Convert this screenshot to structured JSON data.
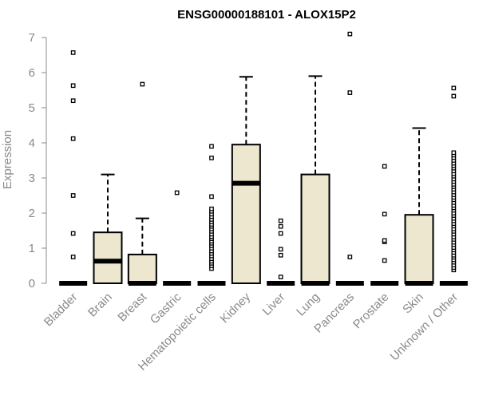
{
  "chart_data": {
    "type": "boxplot",
    "title": "ENSG00000188101 - ALOX15P2",
    "xlabel": "",
    "ylabel": "Expression",
    "ylim": [
      0,
      7
    ],
    "yticks": [
      0,
      1,
      2,
      3,
      4,
      5,
      6,
      7
    ],
    "grid": false,
    "box_fill": "#ede7cf",
    "categories": [
      "Bladder",
      "Brain",
      "Breast",
      "Gastric",
      "Hematopoietic cells",
      "Kidney",
      "Liver",
      "Lung",
      "Pancreas",
      "Prostate",
      "Skin",
      "Unknown / Other"
    ],
    "boxes": [
      {
        "category": "Bladder",
        "q1": 0,
        "median": 0,
        "q3": 0,
        "whisker_low": 0,
        "whisker_high": 0,
        "outliers": [
          0.75,
          1.42,
          2.5,
          4.12,
          5.2,
          5.63,
          6.57
        ]
      },
      {
        "category": "Brain",
        "q1": 0,
        "median": 0.63,
        "q3": 1.45,
        "whisker_low": 0,
        "whisker_high": 3.1,
        "outliers": []
      },
      {
        "category": "Breast",
        "q1": 0,
        "median": 0,
        "q3": 0.82,
        "whisker_low": 0,
        "whisker_high": 1.85,
        "outliers": [
          5.67
        ]
      },
      {
        "category": "Gastric",
        "q1": 0,
        "median": 0,
        "q3": 0,
        "whisker_low": 0,
        "whisker_high": 0,
        "outliers": [
          2.58
        ]
      },
      {
        "category": "Hematopoietic cells",
        "q1": 0,
        "median": 0,
        "q3": 0,
        "whisker_low": 0,
        "whisker_high": 0,
        "outliers": [
          0.42,
          0.5,
          0.57,
          0.63,
          0.7,
          0.78,
          0.85,
          0.92,
          1.0,
          1.07,
          1.14,
          1.2,
          1.27,
          1.33,
          1.4,
          1.48,
          1.55,
          1.62,
          1.68,
          1.75,
          1.82,
          1.9,
          1.97,
          2.05,
          2.12,
          2.47,
          3.57,
          3.9
        ]
      },
      {
        "category": "Kidney",
        "q1": 0,
        "median": 2.85,
        "q3": 3.95,
        "whisker_low": 0,
        "whisker_high": 5.88,
        "outliers": []
      },
      {
        "category": "Liver",
        "q1": 0,
        "median": 0,
        "q3": 0,
        "whisker_low": 0,
        "whisker_high": 0,
        "outliers": [
          0.18,
          0.8,
          0.97,
          1.42,
          1.62,
          1.78
        ]
      },
      {
        "category": "Lung",
        "q1": 0,
        "median": 0,
        "q3": 3.1,
        "whisker_low": 0,
        "whisker_high": 5.9,
        "outliers": []
      },
      {
        "category": "Pancreas",
        "q1": 0,
        "median": 0,
        "q3": 0,
        "whisker_low": 0,
        "whisker_high": 0,
        "outliers": [
          0.75,
          5.43,
          7.1
        ]
      },
      {
        "category": "Prostate",
        "q1": 0,
        "median": 0,
        "q3": 0,
        "whisker_low": 0,
        "whisker_high": 0,
        "outliers": [
          0.65,
          1.18,
          1.22,
          1.97,
          3.33
        ]
      },
      {
        "category": "Skin",
        "q1": 0,
        "median": 0,
        "q3": 1.95,
        "whisker_low": 0,
        "whisker_high": 4.42,
        "outliers": []
      },
      {
        "category": "Unknown / Other",
        "q1": 0,
        "median": 0,
        "q3": 0,
        "whisker_low": 0,
        "whisker_high": 0,
        "outliers": [
          0.38,
          0.45,
          0.52,
          0.6,
          0.67,
          0.74,
          0.8,
          0.88,
          0.95,
          1.02,
          1.1,
          1.17,
          1.25,
          1.32,
          1.4,
          1.48,
          1.55,
          1.63,
          1.7,
          1.78,
          1.85,
          1.93,
          2.0,
          2.08,
          2.15,
          2.22,
          2.3,
          2.38,
          2.45,
          2.52,
          2.6,
          2.68,
          2.75,
          2.82,
          2.9,
          2.97,
          3.05,
          3.12,
          3.2,
          3.28,
          3.35,
          3.42,
          3.5,
          3.58,
          3.65,
          3.72,
          5.33,
          5.56
        ]
      }
    ]
  }
}
